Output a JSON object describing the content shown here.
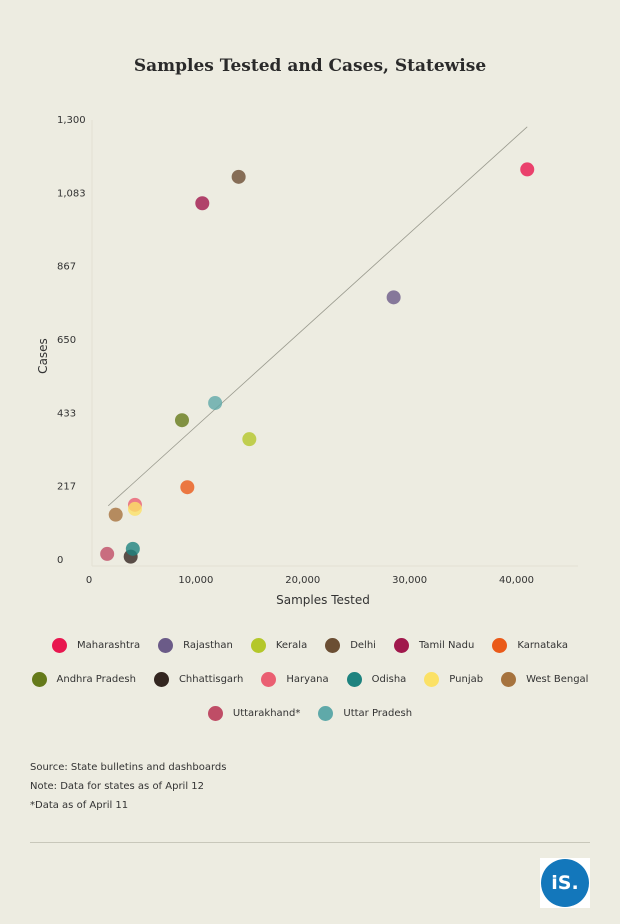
{
  "title": "Samples Tested and Cases, Statewise",
  "chart_data": {
    "type": "scatter",
    "title": "Samples Tested and Cases, Statewise",
    "xlabel": "Samples Tested",
    "ylabel": "Cases",
    "xlim": [
      0,
      45000
    ],
    "ylim": [
      0,
      1300
    ],
    "xticks": [
      "0",
      "10,000",
      "20,000",
      "30,000",
      "40,000"
    ],
    "xtick_values": [
      0,
      10000,
      20000,
      30000,
      40000
    ],
    "yticks": [
      "0",
      "217",
      "433",
      "650",
      "867",
      "1,083",
      "1,300"
    ],
    "ytick_values": [
      0,
      217,
      433,
      650,
      867,
      1083,
      1300
    ],
    "trendline": [
      [
        1800,
        160
      ],
      [
        41000,
        1280
      ]
    ],
    "points": [
      {
        "name": "Maharashtra",
        "x": 41000,
        "y": 1154,
        "color": "#e8174f"
      },
      {
        "name": "Rajasthan",
        "x": 28500,
        "y": 776,
        "color": "#6b5b88"
      },
      {
        "name": "Kerala",
        "x": 15000,
        "y": 357,
        "color": "#b4c72a"
      },
      {
        "name": "Delhi",
        "x": 14000,
        "y": 1132,
        "color": "#6b4e33"
      },
      {
        "name": "Tamil Nadu",
        "x": 10600,
        "y": 1054,
        "color": "#a0184c"
      },
      {
        "name": "Karnataka",
        "x": 9200,
        "y": 215,
        "color": "#ea5a19"
      },
      {
        "name": "Andhra Pradesh",
        "x": 8700,
        "y": 413,
        "color": "#657a1a"
      },
      {
        "name": "Chhattisgarh",
        "x": 3900,
        "y": 10,
        "color": "#332620"
      },
      {
        "name": "Haryana",
        "x": 4300,
        "y": 163,
        "color": "#ea5f72"
      },
      {
        "name": "Odisha",
        "x": 4100,
        "y": 33,
        "color": "#1e837f"
      },
      {
        "name": "Punjab",
        "x": 4300,
        "y": 151,
        "color": "#fbe166"
      },
      {
        "name": "West Bengal",
        "x": 2500,
        "y": 134,
        "color": "#a6733e"
      },
      {
        "name": "Uttarakhand*",
        "x": 1700,
        "y": 18,
        "color": "#bf4d66"
      },
      {
        "name": "Uttar Pradesh",
        "x": 11800,
        "y": 464,
        "color": "#5fa9a9"
      }
    ]
  },
  "legend_rows": [
    [
      {
        "label": "Maharashtra",
        "color": "#e8174f"
      },
      {
        "label": "Rajasthan",
        "color": "#6b5b88"
      },
      {
        "label": "Kerala",
        "color": "#b4c72a"
      },
      {
        "label": "Delhi",
        "color": "#6b4e33"
      },
      {
        "label": "Tamil Nadu",
        "color": "#a0184c"
      },
      {
        "label": "Karnataka",
        "color": "#ea5a19"
      }
    ],
    [
      {
        "label": "Andhra Pradesh",
        "color": "#657a1a"
      },
      {
        "label": "Chhattisgarh",
        "color": "#332620"
      },
      {
        "label": "Haryana",
        "color": "#ea5f72"
      },
      {
        "label": "Odisha",
        "color": "#1e837f"
      },
      {
        "label": "Punjab",
        "color": "#fbe166"
      },
      {
        "label": "West Bengal",
        "color": "#a6733e"
      }
    ],
    [
      {
        "label": "Uttarakhand*",
        "color": "#bf4d66"
      },
      {
        "label": "Uttar Pradesh",
        "color": "#5fa9a9"
      }
    ]
  ],
  "notes": {
    "source": "Source: State bulletins and dashboards",
    "note": "Note: Data for states as of April 12",
    "footnote": "*Data as of April 11"
  },
  "logo": {
    "text": "iS."
  }
}
